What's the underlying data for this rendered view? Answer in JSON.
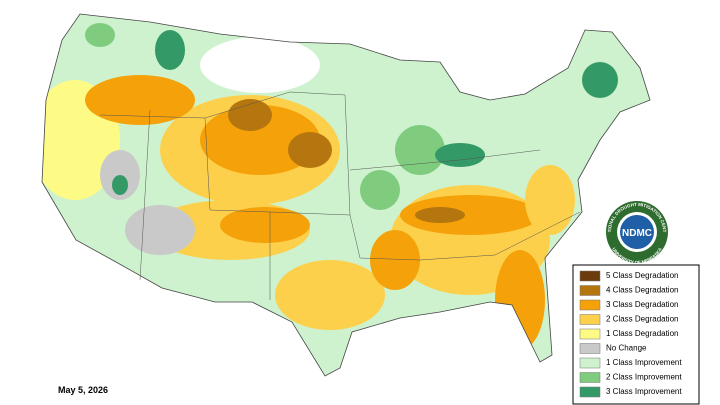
{
  "map": {
    "date": "May 5, 2026",
    "logo": {
      "abbr": "NDMC",
      "ring_top": "NATIONAL DROUGHT MITIGATION CENTER",
      "ring_bottom": "UNIVERSITY OF NEBRASKA"
    },
    "legend": [
      {
        "label": "5 Class Degradation",
        "color": "#6b3b0c"
      },
      {
        "label": "4 Class Degradation",
        "color": "#b5760f"
      },
      {
        "label": "3 Class Degradation",
        "color": "#f5a10a"
      },
      {
        "label": "2 Class Degradation",
        "color": "#fdd04c"
      },
      {
        "label": "1 Class Degradation",
        "color": "#fdfb86"
      },
      {
        "label": "No Change",
        "color": "#c9c9c9"
      },
      {
        "label": "1 Class Improvement",
        "color": "#cdf2cd"
      },
      {
        "label": "2 Class Improvement",
        "color": "#7fcc7f"
      },
      {
        "label": "3 Class Improvement",
        "color": "#339966"
      }
    ]
  }
}
